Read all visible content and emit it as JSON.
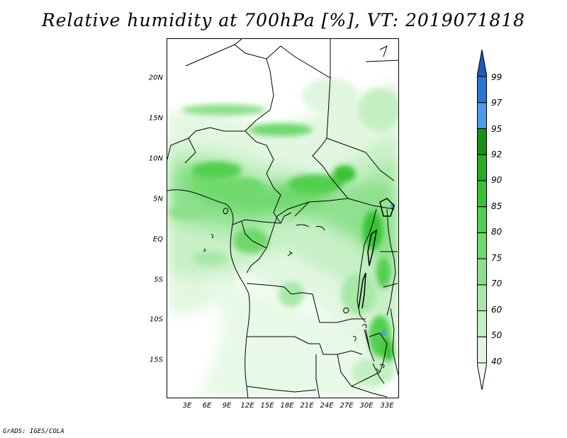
{
  "title": "Relative humidity at 700hPa [%], VT: 2019071818",
  "footer": "GrADS: IGES/COLA",
  "lat_labels": [
    "20N",
    "15N",
    "10N",
    "5N",
    "EQ",
    "5S",
    "10S",
    "15S"
  ],
  "lon_labels": [
    "3E",
    "6E",
    "9E",
    "12E",
    "15E",
    "18E",
    "21E",
    "24E",
    "27E",
    "30E",
    "33E"
  ],
  "colorbar": {
    "levels": [
      "40",
      "50",
      "60",
      "70",
      "75",
      "80",
      "85",
      "90",
      "92",
      "95",
      "97",
      "99"
    ],
    "colors": [
      "#f0fcf0",
      "#e0f6df",
      "#c4efc3",
      "#a8e8a7",
      "#8ce08a",
      "#6ed86c",
      "#52cf50",
      "#38c336",
      "#26ab24",
      "#16901a",
      "#4a9cea",
      "#2a74d2",
      "#1f5ab8"
    ]
  }
}
